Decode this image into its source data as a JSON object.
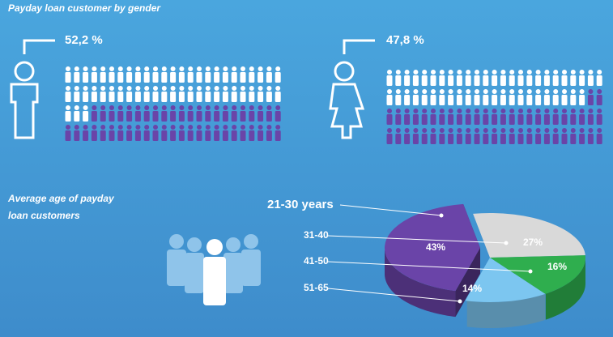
{
  "chart_data": [
    {
      "type": "pictograph",
      "title": "Payday loan customer by gender",
      "values": [
        52.2,
        47.8
      ],
      "value_labels": [
        "52,2 %",
        "47,8 %"
      ],
      "colors": [
        "#ffffff",
        "#6a44a8"
      ]
    },
    {
      "type": "pie",
      "title": "Average age of payday loan customers",
      "categories": [
        "21-30 years",
        "31-40",
        "41-50",
        "51-65"
      ],
      "values": [
        43,
        27,
        16,
        14
      ],
      "value_labels": [
        "43%",
        "27%",
        "16%",
        "14%"
      ],
      "colors": [
        "#6a44a8",
        "#d9d9d9",
        "#2fae4e",
        "#7cc6f0"
      ]
    }
  ]
}
